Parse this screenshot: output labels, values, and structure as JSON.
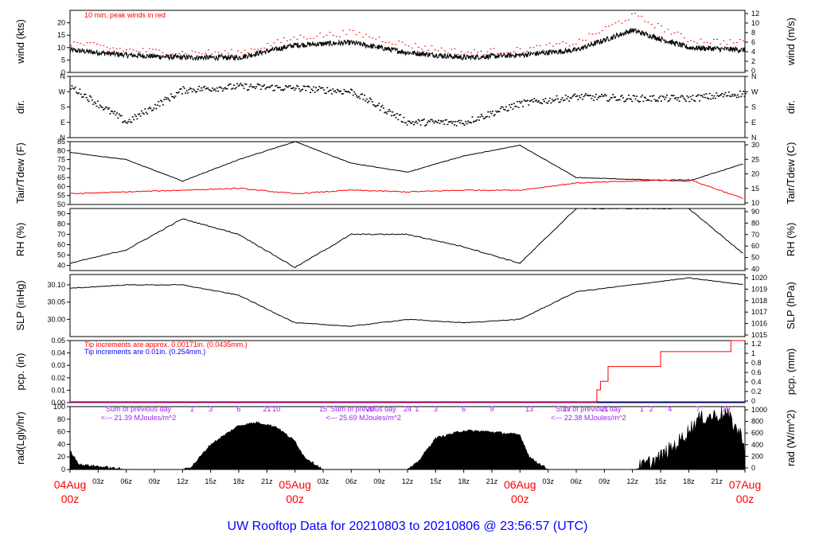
{
  "title": "UW Rooftop Data for 20210803  to  20210806 @ 23:56:57  (UTC)",
  "colors": {
    "ink": "#000000",
    "red": "#ff0000",
    "blue": "#0000ff",
    "purple": "#a020f0",
    "title": "#0000ff",
    "date": "#ff0000"
  },
  "chart_data": [
    {
      "type": "line",
      "id": "wind",
      "ylabel": "wind (kts)",
      "ylabel_right": "wind (m/s)",
      "ylim": [
        0,
        25
      ],
      "yticks": [
        0,
        5,
        10,
        15,
        20
      ],
      "yticks_right": [
        "0",
        "2",
        "4",
        "6",
        "8",
        "10",
        "12"
      ],
      "annotation": "10 min. peak winds in red",
      "x": [
        0,
        6,
        12,
        18,
        24,
        30,
        36,
        42,
        48,
        54,
        60,
        66,
        72
      ],
      "series": [
        {
          "values": [
            9,
            7,
            6,
            6,
            11,
            12,
            8,
            6,
            7,
            9,
            17,
            10,
            9
          ]
        },
        {
          "values": [
            12,
            9,
            8,
            8,
            14,
            16,
            11,
            8,
            9,
            12,
            23,
            13,
            12
          ]
        }
      ]
    },
    {
      "type": "scatter",
      "id": "dir",
      "ylabel": "dir.",
      "ylabel_right": "dir.",
      "yticks": [
        "N",
        "E",
        "S",
        "W",
        "N"
      ],
      "ylim": [
        0,
        360
      ],
      "x": [
        0,
        6,
        12,
        18,
        24,
        30,
        36,
        42,
        48,
        54,
        60,
        66,
        72
      ],
      "values": [
        300,
        90,
        280,
        300,
        290,
        270,
        90,
        90,
        200,
        240,
        230,
        230,
        260
      ]
    },
    {
      "type": "line",
      "id": "temp",
      "ylabel": "Tair/Tdew (F)",
      "ylabel_right": "Tair/Tdew (C)",
      "ylim": [
        50,
        85
      ],
      "yticks": [
        50,
        55,
        60,
        65,
        70,
        75,
        80,
        85
      ],
      "yticks_right": [
        "10",
        "15",
        "20",
        "25",
        "30"
      ],
      "x": [
        0,
        6,
        12,
        18,
        24,
        30,
        36,
        42,
        48,
        54,
        60,
        66,
        72
      ],
      "series": [
        {
          "values": [
            79,
            75,
            63,
            75,
            85,
            73,
            68,
            77,
            83,
            65,
            64,
            63,
            73
          ]
        },
        {
          "values": [
            56,
            57,
            58,
            59,
            56,
            58,
            57,
            58,
            58,
            62,
            63,
            64,
            53
          ]
        }
      ]
    },
    {
      "type": "line",
      "id": "rh",
      "ylabel": "RH (%)",
      "ylabel_right": "RH (%)",
      "ylim": [
        35,
        95
      ],
      "yticks": [
        40,
        50,
        60,
        70,
        80,
        90
      ],
      "yticks_right": [
        "40",
        "50",
        "60",
        "70",
        "80",
        "90"
      ],
      "x": [
        0,
        6,
        12,
        18,
        24,
        30,
        36,
        42,
        48,
        54,
        60,
        66,
        72
      ],
      "series": [
        {
          "values": [
            42,
            55,
            85,
            70,
            38,
            70,
            70,
            58,
            42,
            95,
            95,
            95,
            50
          ]
        }
      ]
    },
    {
      "type": "line",
      "id": "slp",
      "ylabel": "SLP (inHg)",
      "ylabel_right": "SLP (hPa)",
      "ylim": [
        29.95,
        30.13
      ],
      "yticks": [
        30.0,
        30.05,
        30.1
      ],
      "yticks_label": [
        "30.00",
        "30.05",
        "30.10"
      ],
      "yticks_right": [
        "1015",
        "1016",
        "1017",
        "1018",
        "1019",
        "1020"
      ],
      "x": [
        0,
        6,
        12,
        18,
        24,
        30,
        36,
        42,
        48,
        54,
        60,
        66,
        72
      ],
      "series": [
        {
          "values": [
            30.09,
            30.1,
            30.1,
            30.07,
            29.99,
            29.98,
            30.0,
            29.99,
            30.0,
            30.08,
            30.1,
            30.12,
            30.1
          ]
        }
      ]
    },
    {
      "type": "line",
      "id": "pcp",
      "ylabel": "pcp. (in)",
      "ylabel_right": "pcp. (mm)",
      "ylim": [
        0,
        0.05
      ],
      "yticks": [
        0.0,
        0.01,
        0.02,
        0.03,
        0.04,
        0.05
      ],
      "yticks_label": [
        "0.00",
        "0.01",
        "0.02",
        "0.03",
        "0.04",
        "0.05"
      ],
      "yticks_right": [
        "0",
        "0.2",
        "0.4",
        "0.6",
        "0.8",
        "1",
        "1.2"
      ],
      "note_red": "Tip increments are approx. 0.00171in. (0.0435mm.)",
      "note_blue": "Tip increments are 0.01in. (0.254mm.)",
      "x": [
        0,
        56.2,
        56.2,
        56.6,
        56.6,
        57.4,
        57.4,
        63.0,
        63.0,
        70.5,
        70.5,
        72
      ],
      "values": [
        0.0,
        0.0,
        0.0103,
        0.0103,
        0.0171,
        0.0171,
        0.0291,
        0.0291,
        0.0411,
        0.0411,
        0.05,
        0.05
      ]
    },
    {
      "type": "area",
      "id": "rad",
      "ylabel": "rad(Lgly/hr)",
      "ylabel_right": "rad (W/m^2)",
      "ylim": [
        0,
        100
      ],
      "yticks": [
        0,
        20,
        40,
        60,
        80,
        100
      ],
      "yticks_right": [
        "0",
        "200",
        "400",
        "600",
        "800",
        "1000"
      ],
      "day_sums": [
        {
          "label": "Sum of previous day",
          "value": "<--- 21.39 MJoules/m^2"
        },
        {
          "label": "Sum of previous day",
          "value": "<--- 25.69 MJoules/m^2"
        },
        {
          "label": "Sum of previous day",
          "value": "<--- 22.38 MJoules/m^2"
        }
      ],
      "hour_marks": [
        {
          "label": "21",
          "x": 21
        },
        {
          "label": "1",
          "x": 13
        },
        {
          "label": "3",
          "x": 15
        },
        {
          "label": "6",
          "x": 18
        },
        {
          "label": "10",
          "x": 22
        },
        {
          "label": "15",
          "x": 27
        },
        {
          "label": "20",
          "x": 32
        },
        {
          "label": "24",
          "x": 36
        },
        {
          "label": "1",
          "x": 37
        },
        {
          "label": "3",
          "x": 39
        },
        {
          "label": "6",
          "x": 42
        },
        {
          "label": "9",
          "x": 45
        },
        {
          "label": "13",
          "x": 49
        },
        {
          "label": "17",
          "x": 53
        },
        {
          "label": "21",
          "x": 57
        },
        {
          "label": "1",
          "x": 61
        },
        {
          "label": "2",
          "x": 62
        },
        {
          "label": "4",
          "x": 64
        },
        {
          "label": "7",
          "x": 67
        },
        {
          "label": "10",
          "x": 70
        }
      ],
      "x": [
        0,
        1,
        3,
        6,
        12,
        13,
        15,
        18,
        20,
        22,
        24,
        25,
        27,
        36,
        37,
        39,
        42,
        45,
        48,
        49,
        51,
        60,
        61,
        63,
        65,
        67,
        70,
        72
      ],
      "values": [
        30,
        8,
        5,
        0,
        0,
        5,
        40,
        70,
        75,
        68,
        45,
        20,
        0,
        0,
        10,
        50,
        62,
        60,
        55,
        20,
        0,
        0,
        5,
        20,
        45,
        80,
        90,
        45
      ]
    }
  ],
  "x_axis": {
    "range_hours": [
      0,
      72
    ],
    "hour_ticks": [
      "03z",
      "06z",
      "09z",
      "12z",
      "15z",
      "18z",
      "21z"
    ],
    "days": [
      {
        "date": "04Aug",
        "time": "00z",
        "hour": 0
      },
      {
        "date": "05Aug",
        "time": "00z",
        "hour": 24
      },
      {
        "date": "06Aug",
        "time": "00z",
        "hour": 48
      },
      {
        "date": "07Aug",
        "time": "00z",
        "hour": 72
      }
    ]
  }
}
